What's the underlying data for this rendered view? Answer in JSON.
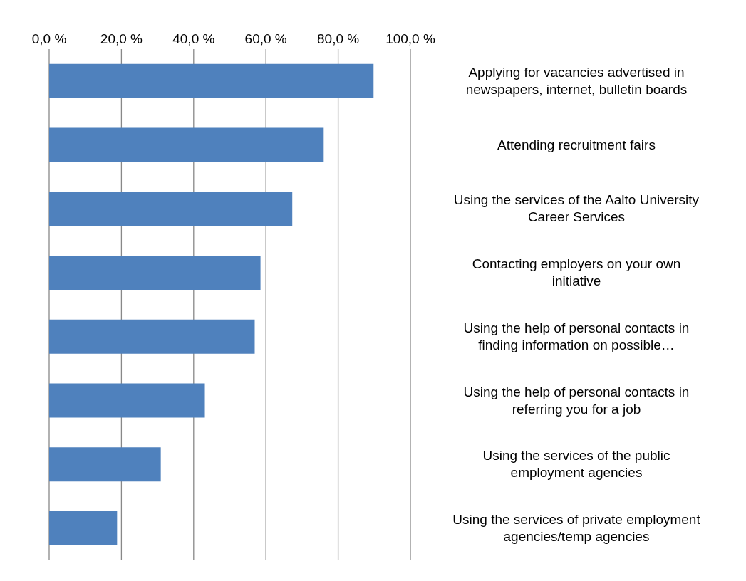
{
  "chart_data": {
    "type": "bar",
    "orientation": "horizontal",
    "categories": [
      "Applying for vacancies advertised in newspapers, internet, bulletin boards",
      "Attending recruitment fairs",
      "Using the services of the Aalto University Career Services",
      "Contacting employers on your own initiative",
      "Using the help of personal contacts in finding information on possible…",
      "Using the help of personal contacts in referring you for a job",
      "Using the services of the public employment agencies",
      "Using the services of private employment agencies/temp agencies"
    ],
    "values": [
      89.8,
      76,
      67.3,
      58.5,
      56.9,
      43.1,
      30.9,
      18.8
    ],
    "color": "#4f81bd",
    "xlim": [
      0,
      100
    ],
    "xticks": [
      {
        "value": 0,
        "label": "0,0 %"
      },
      {
        "value": 20,
        "label": "20,0 %"
      },
      {
        "value": 40,
        "label": "40,0 %"
      },
      {
        "value": 60,
        "label": "60,0 %"
      },
      {
        "value": 80,
        "label": "80,0 %"
      },
      {
        "value": 100,
        "label": "100,0 %"
      }
    ],
    "grid": "x",
    "legend": false
  }
}
